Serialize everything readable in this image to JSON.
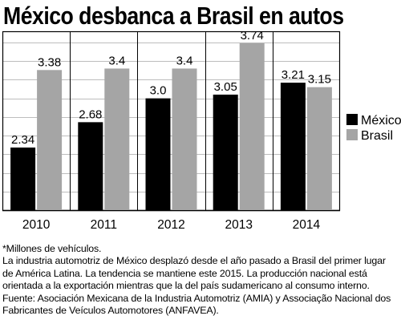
{
  "title": "México desbanca a Brasil en autos",
  "chart_data": {
    "type": "bar",
    "categories": [
      "2010",
      "2011",
      "2012",
      "2013",
      "2014"
    ],
    "series": [
      {
        "name": "México",
        "values": [
          2.34,
          2.68,
          3.0,
          3.05,
          3.21
        ],
        "labels": [
          "2.34",
          "2.68",
          "3.0",
          "3.05",
          "3.21"
        ],
        "color": "#000000"
      },
      {
        "name": "Brasil",
        "values": [
          3.38,
          3.4,
          3.4,
          3.74,
          3.15
        ],
        "labels": [
          "3.38",
          "3.4",
          "3.4",
          "3.74",
          "3.15"
        ],
        "color": "#a5a5a5"
      }
    ],
    "ylim": [
      1.5,
      3.9
    ],
    "grid": true,
    "legend_position": "right"
  },
  "notes": {
    "unit_note": "*Millones de vehículos.",
    "description": "La industria automotriz de México desplazó desde el año pasado a Brasil del primer lugar de América Latina. La tendencia se mantiene este 2015. La producción nacional está orientada a la exportación mientras que la del país sudamericano al consumo interno.",
    "source": "Fuente: Asociación Mexicana de la Industria Automotriz (AMIA) y Associação Nacional dos Fabricantes de Veículos Automotores (ANFAVEA)."
  }
}
